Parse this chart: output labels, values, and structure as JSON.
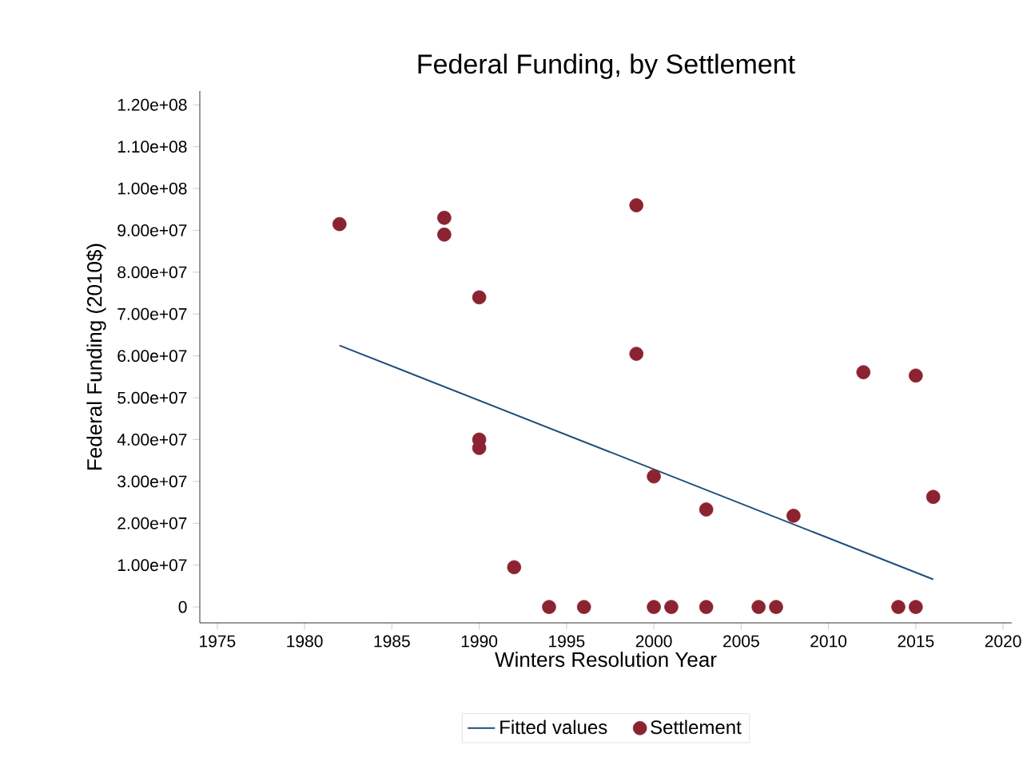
{
  "chart_data": {
    "type": "scatter",
    "title": "Federal Funding, by Settlement",
    "xlabel": "Winters Resolution Year",
    "ylabel": "Federal Funding (2010$)",
    "series": [
      {
        "name": "Fitted values",
        "type": "line",
        "color": "#1f4e79",
        "x": [
          1982,
          2016
        ],
        "values": [
          62500000,
          6600000
        ]
      },
      {
        "name": "Settlement",
        "marker": "circle",
        "color": "#8b2331",
        "x": [
          1982,
          1988,
          1988,
          1990,
          1990,
          1990,
          1992,
          1994,
          1996,
          1999,
          1999,
          2000,
          2000,
          2001,
          2003,
          2003,
          2006,
          2007,
          2008,
          2012,
          2014,
          2015,
          2015,
          2016
        ],
        "values": [
          91500000,
          93000000,
          89000000,
          74000000,
          40000000,
          38000000,
          9500000,
          0,
          0,
          96000000,
          60500000,
          31200000,
          0,
          0,
          23300000,
          0,
          0,
          0,
          21800000,
          56100000,
          0,
          55300000,
          0,
          26300000
        ]
      }
    ],
    "xlim": [
      1974,
      2020.5
    ],
    "ylim": [
      -3800000,
      123300000
    ],
    "xticks": [
      1975,
      1980,
      1985,
      1990,
      1995,
      2000,
      2005,
      2010,
      2015,
      2020
    ],
    "yticks": [
      0,
      {
        "value": 10000000,
        "label": "1.00e+07"
      },
      {
        "value": 20000000,
        "label": "2.00e+07"
      },
      {
        "value": 30000000,
        "label": "3.00e+07"
      },
      {
        "value": 40000000,
        "label": "4.00e+07"
      },
      {
        "value": 50000000,
        "label": "5.00e+07"
      },
      {
        "value": 60000000,
        "label": "6.00e+07"
      },
      {
        "value": 70000000,
        "label": "7.00e+07"
      },
      {
        "value": 80000000,
        "label": "8.00e+07"
      },
      {
        "value": 90000000,
        "label": "9.00e+07"
      },
      {
        "value": 100000000,
        "label": "1.00e+08"
      },
      {
        "value": 110000000,
        "label": "1.10e+08"
      },
      {
        "value": 120000000,
        "label": "1.20e+08"
      }
    ],
    "grid": false,
    "legend": "bottom"
  }
}
